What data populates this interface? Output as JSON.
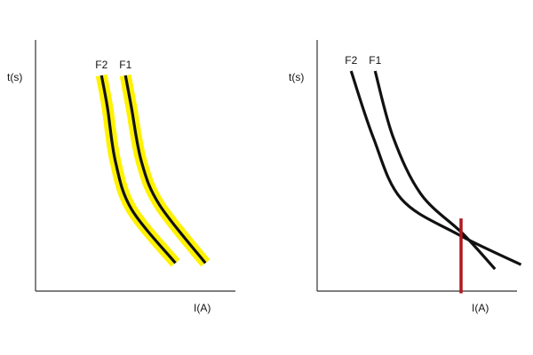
{
  "colors": {
    "curve": "#111111",
    "highlight": "#fff200",
    "marker": "#b0191e",
    "axis": "#333333"
  },
  "chart_data": [
    {
      "type": "line",
      "title": "",
      "xlabel": "I(A)",
      "ylabel": "t(s)",
      "xlim": [
        0,
        100
      ],
      "ylim": [
        0,
        100
      ],
      "highlighted": true,
      "series": [
        {
          "name": "F2",
          "points": [
            [
              33,
              100
            ],
            [
              36,
              85
            ],
            [
              40,
              60
            ],
            [
              48,
              38
            ],
            [
              70,
              13
            ]
          ]
        },
        {
          "name": "F1",
          "points": [
            [
              45,
              100
            ],
            [
              48,
              85
            ],
            [
              53,
              60
            ],
            [
              62,
              40
            ],
            [
              85,
              13
            ]
          ]
        }
      ]
    },
    {
      "type": "line",
      "title": "",
      "xlabel": "I(A)",
      "ylabel": "t(s)",
      "xlim": [
        0,
        100
      ],
      "ylim": [
        0,
        100
      ],
      "highlighted": false,
      "series": [
        {
          "name": "F2",
          "points": [
            [
              17,
              100
            ],
            [
              28,
              70
            ],
            [
              42,
              42
            ],
            [
              70,
              26
            ],
            [
              102,
              12
            ]
          ]
        },
        {
          "name": "F1",
          "points": [
            [
              29,
              100
            ],
            [
              38,
              70
            ],
            [
              52,
              44
            ],
            [
              73,
              26
            ],
            [
              89,
              10
            ]
          ]
        }
      ],
      "marker": {
        "x": 72,
        "y_range": [
          -1,
          33
        ]
      }
    }
  ]
}
